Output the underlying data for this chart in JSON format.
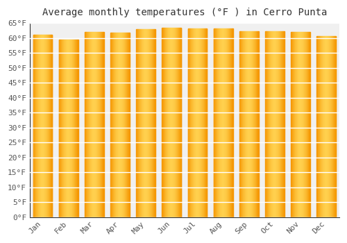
{
  "title": "Average monthly temperatures (°F ) in Cerro Punta",
  "months": [
    "Jan",
    "Feb",
    "Mar",
    "Apr",
    "May",
    "Jun",
    "Jul",
    "Aug",
    "Sep",
    "Oct",
    "Nov",
    "Dec"
  ],
  "values": [
    61.2,
    59.5,
    62.0,
    61.8,
    63.0,
    63.5,
    63.1,
    63.1,
    62.3,
    62.3,
    62.0,
    60.6
  ],
  "bar_color_center": "#FFD04E",
  "bar_color_edge": "#F59500",
  "background_color": "#ffffff",
  "plot_bg_color": "#f0f0f0",
  "grid_color": "#ffffff",
  "ylim": [
    0,
    65
  ],
  "ytick_step": 5,
  "title_fontsize": 10,
  "tick_fontsize": 8,
  "bar_width": 0.75
}
